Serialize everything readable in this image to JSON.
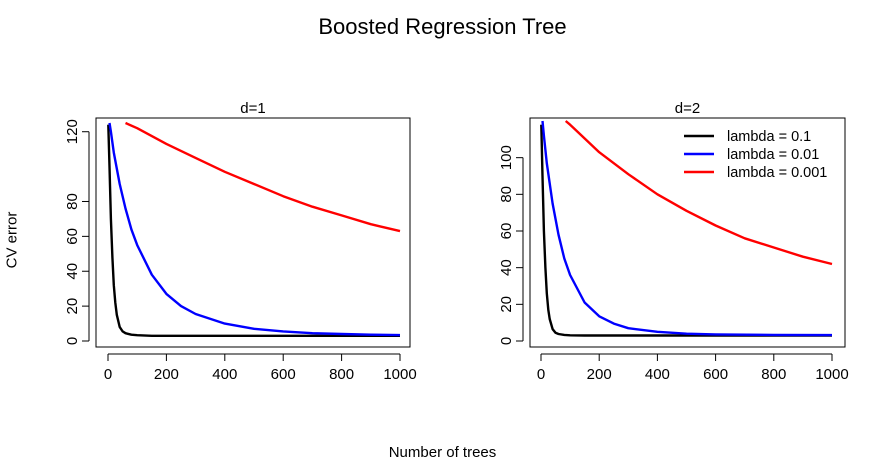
{
  "figure": {
    "title": "Boosted Regression Tree",
    "xlabel": "Number of trees",
    "ylabel": "CV error"
  },
  "chart_data": [
    {
      "type": "line",
      "title": "d=1",
      "xlim": [
        0,
        1000
      ],
      "ylim": [
        0,
        125
      ],
      "xticks": [
        0,
        200,
        400,
        600,
        800,
        1000
      ],
      "yticks": [
        0,
        20,
        40,
        60,
        80,
        120
      ],
      "grid": false,
      "series": [
        {
          "name": "lambda = 0.1",
          "color": "#000000",
          "x": [
            1,
            5,
            10,
            15,
            20,
            25,
            30,
            40,
            50,
            60,
            80,
            100,
            150,
            200,
            300,
            500,
            1000
          ],
          "y": [
            124,
            100,
            70,
            48,
            32,
            22,
            15,
            8,
            5.5,
            4.5,
            3.6,
            3.3,
            3.0,
            3.0,
            3.0,
            3.0,
            3.0
          ]
        },
        {
          "name": "lambda = 0.01",
          "color": "#0000ff",
          "x": [
            5,
            10,
            20,
            40,
            60,
            80,
            100,
            150,
            200,
            250,
            300,
            400,
            500,
            600,
            700,
            800,
            900,
            1000
          ],
          "y": [
            125,
            120,
            108,
            90,
            76,
            64,
            55,
            38,
            27,
            20,
            15.5,
            10,
            7,
            5.5,
            4.5,
            4,
            3.6,
            3.4
          ]
        },
        {
          "name": "lambda = 0.001",
          "color": "#ff0000",
          "x": [
            60,
            100,
            200,
            300,
            400,
            500,
            600,
            700,
            800,
            900,
            1000
          ],
          "y": [
            125,
            122,
            113,
            105,
            97,
            90,
            83,
            77,
            72,
            67,
            63
          ]
        }
      ]
    },
    {
      "type": "line",
      "title": "d=2",
      "xlim": [
        0,
        1000
      ],
      "ylim": [
        0,
        120
      ],
      "xticks": [
        0,
        200,
        400,
        600,
        800,
        1000
      ],
      "yticks": [
        0,
        20,
        40,
        60,
        80,
        100
      ],
      "grid": false,
      "legend": "top-right",
      "series": [
        {
          "name": "lambda = 0.1",
          "color": "#000000",
          "x": [
            1,
            5,
            10,
            15,
            20,
            25,
            30,
            40,
            50,
            60,
            80,
            100,
            150,
            200,
            500,
            1000
          ],
          "y": [
            118,
            90,
            60,
            40,
            26,
            17,
            12,
            6.5,
            4.5,
            3.8,
            3.3,
            3.1,
            3.0,
            3.0,
            3.0,
            3.0
          ]
        },
        {
          "name": "lambda = 0.01",
          "color": "#0000ff",
          "x": [
            5,
            10,
            20,
            40,
            60,
            80,
            100,
            150,
            200,
            250,
            300,
            400,
            500,
            600,
            800,
            1000
          ],
          "y": [
            120,
            112,
            97,
            75,
            58,
            45,
            36,
            21,
            13.5,
            9.5,
            7,
            5,
            4,
            3.6,
            3.3,
            3.2
          ]
        },
        {
          "name": "lambda = 0.001",
          "color": "#ff0000",
          "x": [
            85,
            100,
            200,
            300,
            400,
            500,
            600,
            700,
            800,
            900,
            1000
          ],
          "y": [
            120,
            118,
            103,
            91,
            80,
            71,
            63,
            56,
            51,
            46,
            42
          ]
        }
      ]
    }
  ]
}
